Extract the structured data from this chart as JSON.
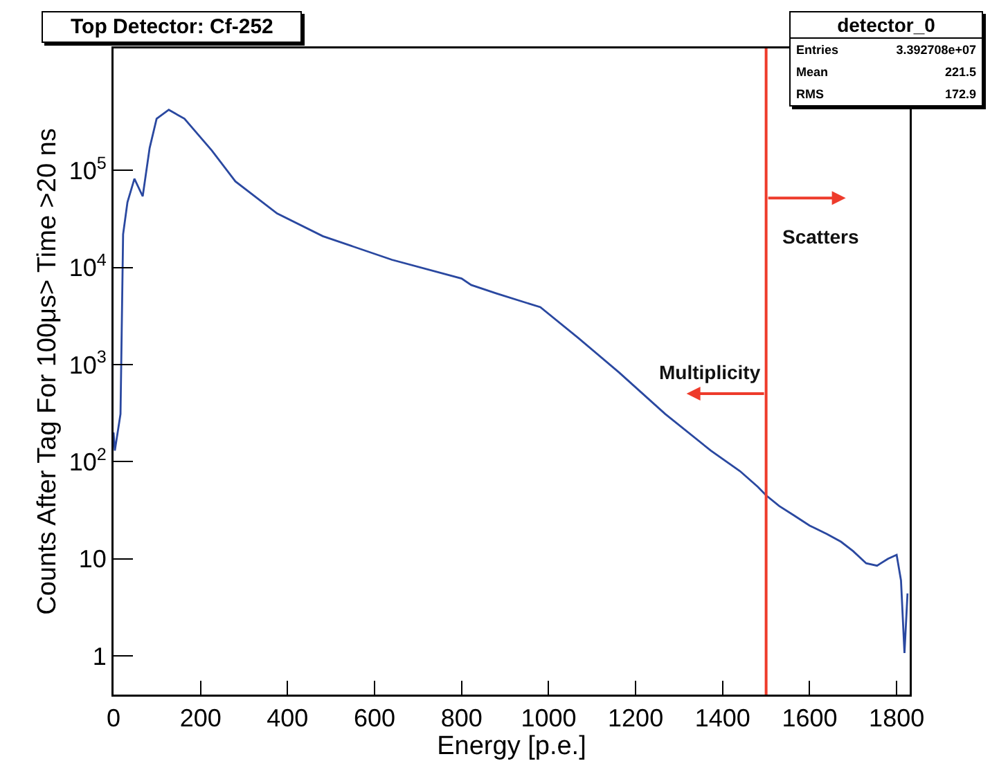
{
  "chart_data": {
    "type": "line",
    "title": "Top Detector: Cf-252",
    "xlabel": "Energy [p.e.]",
    "ylabel": "Counts After Tag For 100μs> Time >20 ns",
    "x": [
      0,
      3,
      16,
      22,
      32,
      48,
      67,
      83,
      99,
      127,
      163,
      226,
      280,
      376,
      481,
      640,
      800,
      822,
      880,
      981,
      1067,
      1162,
      1268,
      1373,
      1440,
      1481,
      1500,
      1530,
      1564,
      1600,
      1640,
      1672,
      1700,
      1730,
      1755,
      1780,
      1800,
      1810,
      1818,
      1825
    ],
    "series": [
      {
        "color": "#2a48a0",
        "values": [
          200,
          130,
          310,
          22000,
          47000,
          82000,
          54000,
          170000,
          340000,
          420000,
          340000,
          160000,
          77000,
          36000,
          21000,
          12000,
          7700,
          6600,
          5400,
          3900,
          1900,
          830,
          310,
          130,
          80,
          55,
          45,
          35,
          28,
          22,
          18,
          15,
          12,
          9,
          8.5,
          10,
          11,
          6,
          1.07,
          4.4
        ]
      }
    ],
    "xlim": [
      0,
      1830
    ],
    "ylim": [
      0.4,
      1800000
    ],
    "xticks": [
      0,
      200,
      400,
      600,
      800,
      1000,
      1200,
      1400,
      1600,
      1800
    ],
    "yticks": [
      1,
      10,
      {
        "value": 100,
        "label": "10$^{2}$"
      },
      {
        "value": 1000,
        "label": "10$^{3}$"
      },
      {
        "value": 10000,
        "label": "10$^{4}$"
      },
      {
        "value": 100000,
        "label": "10$^{5}$"
      }
    ],
    "log": "y",
    "ref_lines": [
      {
        "axis": "x",
        "value": 1500,
        "color": "#ee3b2b"
      }
    ],
    "annotations": [
      "Multiplicity",
      "Scatters",
      "detector_0",
      "Entries",
      "3.392708e+07",
      "Mean",
      "221.5",
      "RMS",
      "172.9"
    ]
  }
}
